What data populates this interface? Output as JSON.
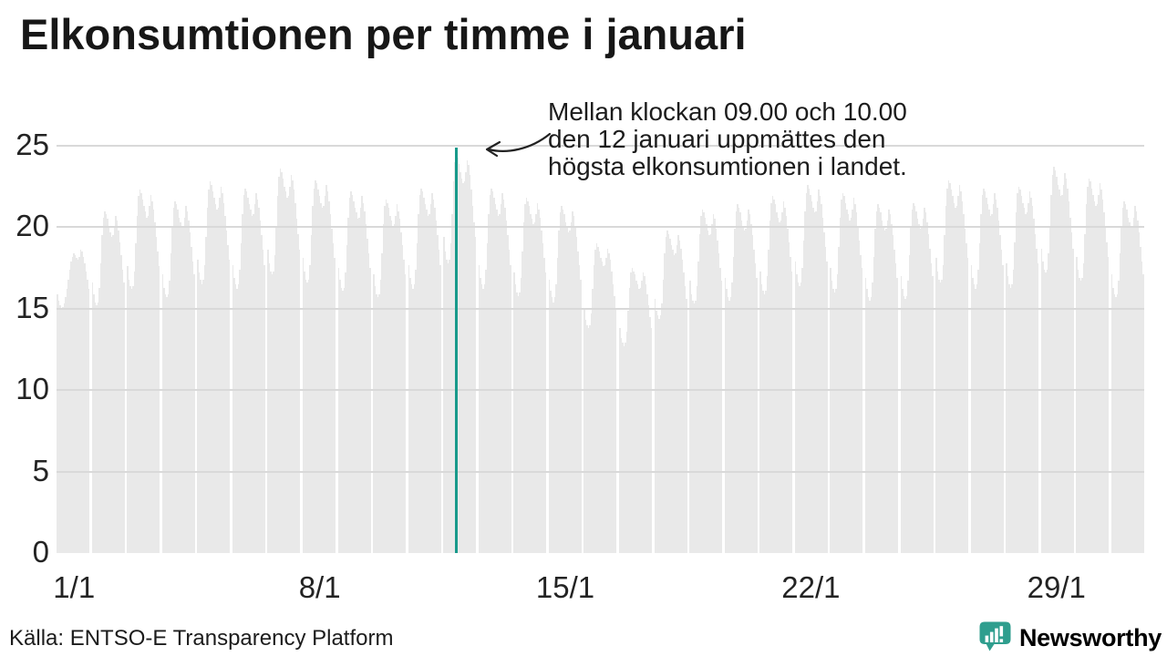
{
  "title": "Elkonsumtionen per timme i januari",
  "annotation": {
    "lines": [
      "Mellan klockan 09.00 och 10.00",
      "den 12 januari uppmättes den",
      "högsta elkonsumtionen i landet."
    ]
  },
  "source": "Källa: ENTSO-E Transparency Platform",
  "logo": {
    "text": "Newsworthy",
    "color": "#2f9e8e"
  },
  "colors": {
    "bar": "#e9e9e9",
    "gridline": "#d9d9d9",
    "highlight_line": "#189a8b",
    "text": "#1c1c1c"
  },
  "chart_data": {
    "type": "bar",
    "title": "Elkonsumtionen per timme i januari",
    "xlabel": "",
    "ylabel": "",
    "ylim": [
      0,
      25
    ],
    "yticks": [
      0,
      5,
      10,
      15,
      20,
      25
    ],
    "grid": "horizontal, drawn over bars",
    "legend": "none",
    "days_in_month": 31,
    "hours_per_day": 24,
    "x_tick_labels": [
      {
        "day": 1,
        "label": "1/1"
      },
      {
        "day": 8,
        "label": "8/1"
      },
      {
        "day": 15,
        "label": "15/1"
      },
      {
        "day": 22,
        "label": "22/1"
      },
      {
        "day": 29,
        "label": "29/1"
      }
    ],
    "daily_peaks": [
      18.6,
      21.0,
      22.3,
      21.6,
      22.8,
      22.4,
      23.6,
      22.9,
      22.2,
      21.7,
      22.4,
      24.5,
      22.4,
      21.8,
      21.3,
      19.0,
      17.5,
      19.8,
      21.1,
      21.4,
      21.9,
      22.6,
      22.1,
      21.4,
      21.5,
      22.9,
      22.4,
      22.5,
      23.7,
      23.0,
      21.6
    ],
    "hourly_profile": [
      0.79,
      0.755,
      0.735,
      0.725,
      0.735,
      0.775,
      0.85,
      0.93,
      0.98,
      1.0,
      0.99,
      0.975,
      0.955,
      0.94,
      0.925,
      0.93,
      0.955,
      0.985,
      0.97,
      0.945,
      0.91,
      0.87,
      0.83,
      0.79
    ],
    "day_overrides": {
      "1": [
        15.9,
        15.5,
        15.2,
        15.0,
        15.1,
        15.3,
        15.7,
        16.2,
        16.8,
        17.4,
        17.9,
        18.2,
        18.4,
        18.3,
        18.1,
        18.0,
        18.2,
        18.6,
        18.5,
        18.2,
        17.8,
        17.3,
        16.8,
        16.2
      ]
    },
    "highlight": {
      "day": 12,
      "hour_index": 9,
      "hour_start": "09.00",
      "hour_end": "10.00",
      "value": 24.5,
      "color": "#189a8b"
    }
  }
}
